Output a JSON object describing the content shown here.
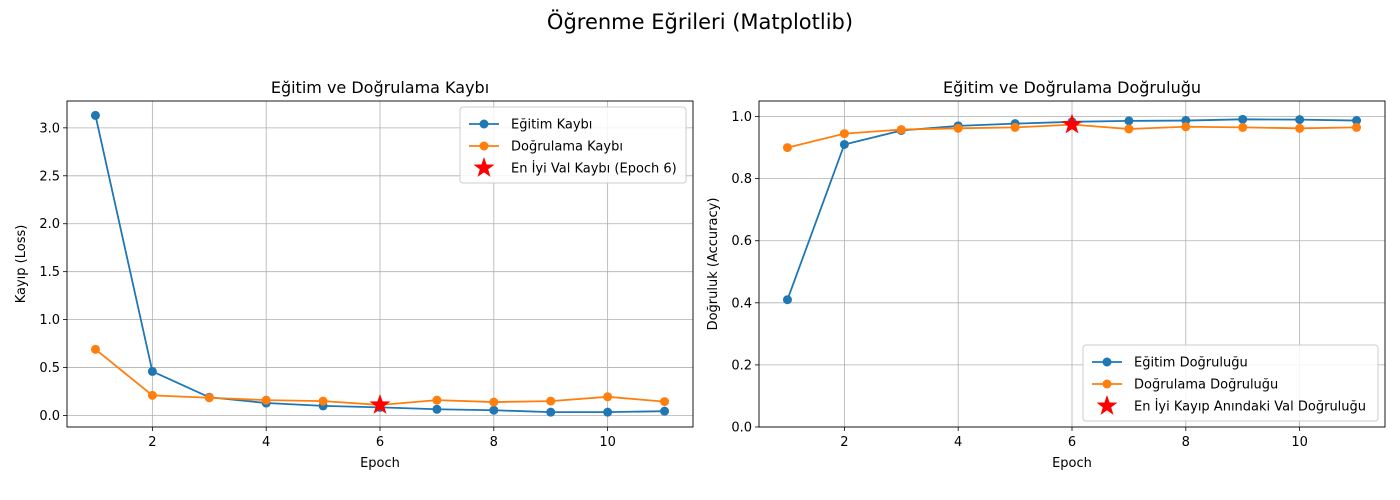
{
  "suptitle": "Öğrenme Eğrileri (Matplotlib)",
  "colors": {
    "train": "#1f77b4",
    "val": "#ff7f0e",
    "best": "#ff0000",
    "grid": "#b0b0b0"
  },
  "chart_data": [
    {
      "type": "line",
      "title": "Eğitim ve Doğrulama Kaybı",
      "xlabel": "Epoch",
      "ylabel": "Kayıp (Loss)",
      "x": [
        1,
        2,
        3,
        4,
        5,
        6,
        7,
        8,
        9,
        10,
        11
      ],
      "xlim": [
        0.5,
        11.5
      ],
      "ylim": [
        -0.12,
        3.28
      ],
      "xticks": [
        2,
        4,
        6,
        8,
        10
      ],
      "yticks": [
        0.0,
        0.5,
        1.0,
        1.5,
        2.0,
        2.5,
        3.0
      ],
      "ytick_decimals": 1,
      "grid": true,
      "legend_position": "upper right",
      "series": [
        {
          "name": "Eğitim Kaybı",
          "color": "#1f77b4",
          "values": [
            3.13,
            0.46,
            0.19,
            0.13,
            0.1,
            0.085,
            0.065,
            0.055,
            0.035,
            0.035,
            0.045
          ]
        },
        {
          "name": "Doğrulama Kaybı",
          "color": "#ff7f0e",
          "values": [
            0.69,
            0.21,
            0.185,
            0.16,
            0.15,
            0.11,
            0.16,
            0.14,
            0.15,
            0.195,
            0.145
          ]
        }
      ],
      "markers": [
        {
          "name": "En İyi Val Kaybı (Epoch 6)",
          "color": "#ff0000",
          "x": 6,
          "y": 0.11
        }
      ]
    },
    {
      "type": "line",
      "title": "Eğitim ve Doğrulama Doğruluğu",
      "xlabel": "Epoch",
      "ylabel": "Doğruluk (Accuracy)",
      "x": [
        1,
        2,
        3,
        4,
        5,
        6,
        7,
        8,
        9,
        10,
        11
      ],
      "xlim": [
        0.5,
        11.5
      ],
      "ylim": [
        0.0,
        1.05
      ],
      "xticks": [
        2,
        4,
        6,
        8,
        10
      ],
      "yticks": [
        0.0,
        0.2,
        0.4,
        0.6,
        0.8,
        1.0
      ],
      "ytick_decimals": 1,
      "grid": true,
      "legend_position": "lower right",
      "series": [
        {
          "name": "Eğitim Doğruluğu",
          "color": "#1f77b4",
          "values": [
            0.41,
            0.91,
            0.955,
            0.97,
            0.977,
            0.983,
            0.986,
            0.987,
            0.991,
            0.99,
            0.987
          ]
        },
        {
          "name": "Doğrulama Doğruluğu",
          "color": "#ff7f0e",
          "values": [
            0.9,
            0.945,
            0.958,
            0.962,
            0.965,
            0.974,
            0.96,
            0.967,
            0.965,
            0.962,
            0.965
          ]
        }
      ],
      "markers": [
        {
          "name": "En İyi Kayıp Anındaki Val Doğruluğu",
          "color": "#ff0000",
          "x": 6,
          "y": 0.974
        }
      ]
    }
  ]
}
